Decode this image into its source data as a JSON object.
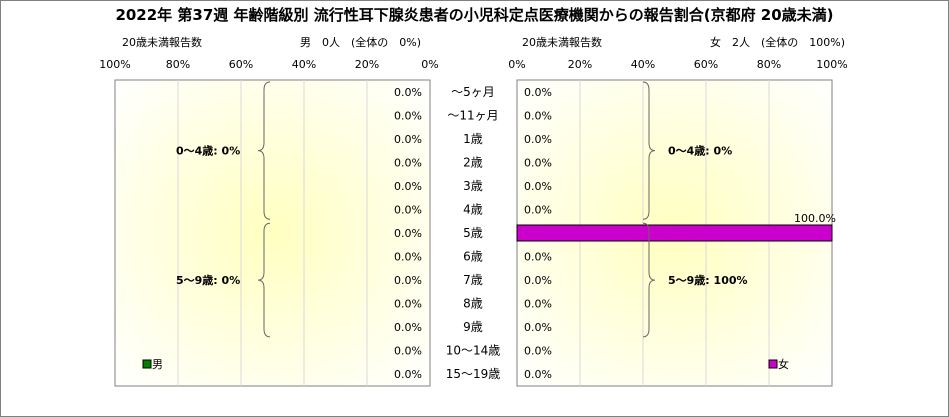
{
  "chart_data": {
    "title": "2022年 第37週 年齢階級別 流行性耳下腺炎患者の小児科定点医療機関からの報告割合(京都府 20歳未満)",
    "type": "bar",
    "orientation": "horizontal",
    "categories": [
      "～5ヶ月",
      "～11ヶ月",
      "1歳",
      "2歳",
      "3歳",
      "4歳",
      "5歳",
      "6歳",
      "7歳",
      "8歳",
      "9歳",
      "10～14歳",
      "15～19歳"
    ],
    "x_tick_labels": [
      "0%",
      "20%",
      "40%",
      "60%",
      "80%",
      "100%"
    ],
    "xlim": [
      0,
      100
    ],
    "grid": true,
    "panels": [
      {
        "side": "left",
        "header": {
          "left": "20歳未満報告数",
          "right": "男　0人　(全体の　0%)"
        },
        "series": [
          {
            "name": "男",
            "color": "#008000",
            "values": [
              0,
              0,
              0,
              0,
              0,
              0,
              0,
              0,
              0,
              0,
              0,
              0,
              0
            ],
            "value_labels": [
              "0.0%",
              "0.0%",
              "0.0%",
              "0.0%",
              "0.0%",
              "0.0%",
              "0.0%",
              "0.0%",
              "0.0%",
              "0.0%",
              "0.0%",
              "0.0%",
              "0.0%"
            ]
          }
        ],
        "group_annotations": [
          {
            "text": "0～4歳: 0%",
            "from": 0,
            "to": 5
          },
          {
            "text": "5～9歳: 0%",
            "from": 6,
            "to": 10
          }
        ],
        "legend": "bottom-left"
      },
      {
        "side": "right",
        "header": {
          "left": "20歳未満報告数",
          "right": "女　2人　(全体の　100%)"
        },
        "series": [
          {
            "name": "女",
            "color": "#cc00cc",
            "values": [
              0,
              0,
              0,
              0,
              0,
              0,
              100,
              0,
              0,
              0,
              0,
              0,
              0
            ],
            "value_labels": [
              "0.0%",
              "0.0%",
              "0.0%",
              "0.0%",
              "0.0%",
              "0.0%",
              "100.0%",
              "0.0%",
              "0.0%",
              "0.0%",
              "0.0%",
              "0.0%",
              "0.0%"
            ]
          }
        ],
        "group_annotations": [
          {
            "text": "0～4歳: 0%",
            "from": 0,
            "to": 5
          },
          {
            "text": "5～9歳: 100%",
            "from": 6,
            "to": 10
          }
        ],
        "legend": "bottom-right"
      }
    ]
  }
}
